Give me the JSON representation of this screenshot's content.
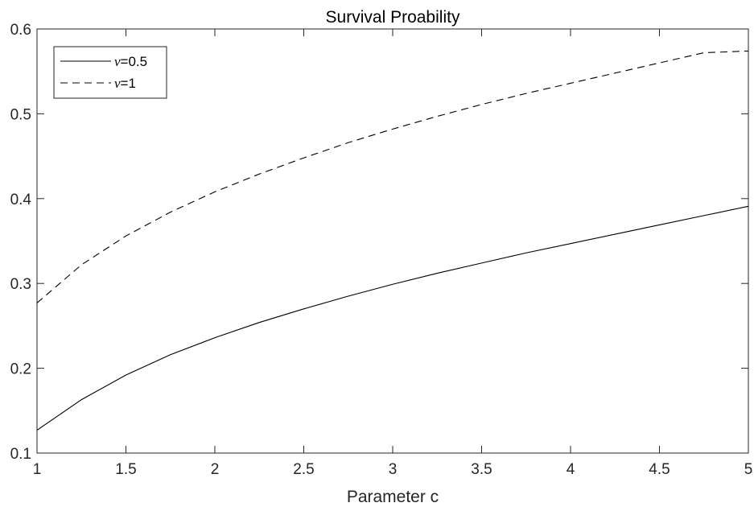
{
  "chart_data": {
    "type": "line",
    "title": "Survival Proability",
    "xlabel": "Parameter c",
    "ylabel": "",
    "xlim": [
      1,
      5
    ],
    "ylim": [
      0.1,
      0.6
    ],
    "xticks": [
      1,
      1.5,
      2,
      2.5,
      3,
      3.5,
      4,
      4.5,
      5
    ],
    "xtick_labels": [
      "1",
      "1.5",
      "2",
      "2.5",
      "3",
      "3.5",
      "4",
      "4.5",
      "5"
    ],
    "yticks": [
      0.1,
      0.2,
      0.3,
      0.4,
      0.5,
      0.6
    ],
    "ytick_labels": [
      "0.1",
      "0.2",
      "0.3",
      "0.4",
      "0.5",
      "0.6"
    ],
    "grid": false,
    "legend_position": "top-left",
    "series": [
      {
        "name": "ν=0.5",
        "symbol": "ν",
        "value_label": "=0.5",
        "style": "solid",
        "color": "#000000",
        "x": [
          1,
          1.25,
          1.5,
          1.75,
          2,
          2.25,
          2.5,
          2.75,
          3,
          3.25,
          3.5,
          3.75,
          4,
          4.25,
          4.5,
          4.75,
          5
        ],
        "y": [
          0.127,
          0.163,
          0.192,
          0.216,
          0.236,
          0.254,
          0.27,
          0.285,
          0.299,
          0.312,
          0.324,
          0.336,
          0.347,
          0.358,
          0.369,
          0.38,
          0.391
        ]
      },
      {
        "name": "ν=1",
        "symbol": "ν",
        "value_label": "=1",
        "style": "dashed",
        "color": "#000000",
        "x": [
          1,
          1.25,
          1.5,
          1.75,
          2,
          2.25,
          2.5,
          2.75,
          3,
          3.25,
          3.5,
          3.75,
          4,
          4.25,
          4.5,
          4.75,
          5
        ],
        "y": [
          0.277,
          0.322,
          0.356,
          0.384,
          0.408,
          0.429,
          0.448,
          0.466,
          0.482,
          0.497,
          0.511,
          0.524,
          0.536,
          0.548,
          0.56,
          0.572,
          0.574
        ]
      }
    ]
  }
}
